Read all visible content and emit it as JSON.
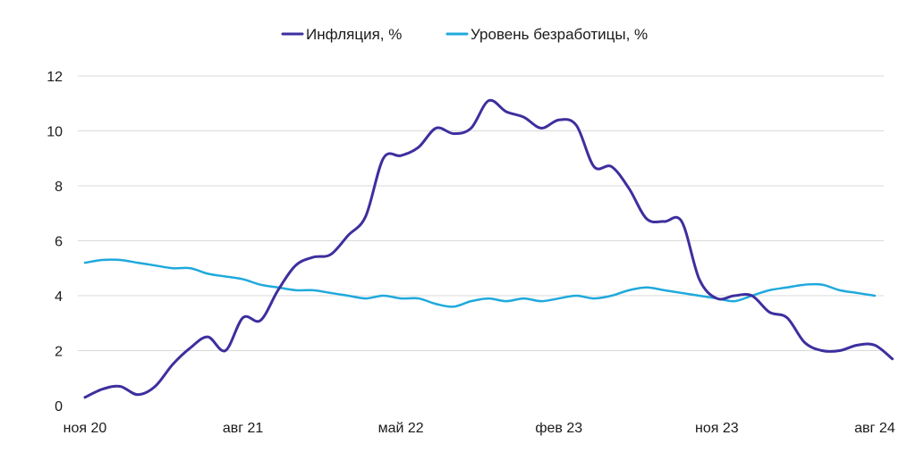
{
  "chart_data": {
    "type": "line",
    "title": "",
    "xlabel": "",
    "ylabel": "",
    "ylim": [
      0,
      12
    ],
    "yticks": [
      0,
      2,
      4,
      6,
      8,
      10,
      12
    ],
    "ytick_labels": [
      "0",
      "2",
      "4",
      "6",
      "8",
      "10",
      "12"
    ],
    "x_tick_labels": [
      {
        "label": "ноя 20",
        "index": 0
      },
      {
        "label": "авг 21",
        "index": 9
      },
      {
        "label": "май 22",
        "index": 18
      },
      {
        "label": "фев 23",
        "index": 27
      },
      {
        "label": "ноя 23",
        "index": 36
      },
      {
        "label": "авг 24",
        "index": 45
      }
    ],
    "grid": true,
    "legend_position": "top-center",
    "series": [
      {
        "name": "Инфляция, %",
        "color": "#3d2f9e",
        "values": [
          0.3,
          0.6,
          0.7,
          0.4,
          0.7,
          1.5,
          2.1,
          2.5,
          2.0,
          3.2,
          3.1,
          4.2,
          5.1,
          5.4,
          5.5,
          6.2,
          6.9,
          9.0,
          9.1,
          9.4,
          10.1,
          9.9,
          10.1,
          11.1,
          10.7,
          10.5,
          10.1,
          10.4,
          10.2,
          8.7,
          8.7,
          7.9,
          6.8,
          6.7,
          6.7,
          4.6,
          3.9,
          4.0,
          4.0,
          3.4,
          3.2,
          2.3,
          2.0,
          2.0,
          2.2,
          2.2,
          1.7
        ]
      },
      {
        "name": "Уровень безработицы, %",
        "color": "#1fa9dc",
        "values": [
          5.2,
          5.3,
          5.3,
          5.2,
          5.1,
          5.0,
          5.0,
          4.8,
          4.7,
          4.6,
          4.4,
          4.3,
          4.2,
          4.2,
          4.1,
          4.0,
          3.9,
          4.0,
          3.9,
          3.9,
          3.7,
          3.6,
          3.8,
          3.9,
          3.8,
          3.9,
          3.8,
          3.9,
          4.0,
          3.9,
          4.0,
          4.2,
          4.3,
          4.2,
          4.1,
          4.0,
          3.9,
          3.8,
          4.0,
          4.2,
          4.3,
          4.4,
          4.4,
          4.2,
          4.1,
          4.0
        ]
      }
    ]
  }
}
